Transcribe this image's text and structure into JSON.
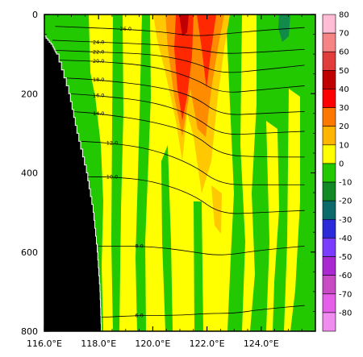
{
  "chart_data": {
    "type": "heatmap",
    "x_axis": {
      "range": [
        116.0,
        126.0
      ],
      "ticks": [
        116.0,
        118.0,
        120.0,
        122.0,
        124.0
      ],
      "tick_labels": [
        "116.0°E",
        "118.0°E",
        "120.0°E",
        "122.0°E",
        "124.0°E"
      ]
    },
    "y_axis": {
      "range": [
        0,
        800
      ],
      "inverted": true,
      "ticks": [
        0,
        200,
        400,
        600,
        800
      ],
      "tick_labels": [
        "0",
        "200",
        "400",
        "600",
        "800"
      ]
    },
    "colorbar": {
      "levels": [
        80,
        70,
        60,
        50,
        40,
        30,
        20,
        10,
        0,
        -10,
        -20,
        -30,
        -40,
        -50,
        -60,
        -70,
        -80
      ],
      "tick_labels": [
        "80",
        "70",
        "60",
        "50",
        "40",
        "30",
        "20",
        "10",
        "0",
        "-10",
        "-20",
        "-30",
        "-40",
        "-50",
        "-60",
        "-70",
        "-80"
      ],
      "colors": [
        "#ffbcd4",
        "#f68484",
        "#e03c3c",
        "#c00000",
        "#ff0000",
        "#ff7800",
        "#ffb400",
        "#ffff00",
        "#22c800",
        "#118a26",
        "#0d6a6a",
        "#2a2ad8",
        "#7a3cff",
        "#a928d1",
        "#c84ac4",
        "#e45ee8",
        "#f08bf0"
      ]
    },
    "color_fill": {
      "positive_0_10": "#ffff00",
      "positive_10_20": "#ffc800",
      "positive_20_30": "#ff8c00",
      "positive_30_40": "#ff2800",
      "negative_0_10": "#22c800",
      "negative_10_20": "#118a4a",
      "land": "#000000"
    },
    "land_boundary_depth_vs_lon": [
      {
        "depth": 55,
        "lon": 116.0
      },
      {
        "depth": 80,
        "lon": 116.3
      },
      {
        "depth": 100,
        "lon": 116.45
      },
      {
        "depth": 200,
        "lon": 116.9
      },
      {
        "depth": 300,
        "lon": 117.2
      },
      {
        "depth": 400,
        "lon": 117.55
      },
      {
        "depth": 500,
        "lon": 117.8
      },
      {
        "depth": 600,
        "lon": 117.95
      },
      {
        "depth": 700,
        "lon": 118.05
      },
      {
        "depth": 800,
        "lon": 118.1
      }
    ],
    "contours": [
      {
        "level": "26.0",
        "points": [
          [
            116.4,
            30
          ],
          [
            119.0,
            37
          ],
          [
            120.5,
            45
          ],
          [
            121.5,
            55
          ],
          [
            122.5,
            50
          ],
          [
            124.0,
            40
          ],
          [
            125.6,
            33
          ]
        ]
      },
      {
        "level": "24.0",
        "points": [
          [
            116.3,
            65
          ],
          [
            118.0,
            70
          ],
          [
            120.0,
            75
          ],
          [
            121.5,
            85
          ],
          [
            122.5,
            100
          ],
          [
            124.0,
            95
          ],
          [
            125.6,
            88
          ]
        ]
      },
      {
        "level": "22.0",
        "points": [
          [
            116.3,
            90
          ],
          [
            118.0,
            95
          ],
          [
            120.0,
            100
          ],
          [
            121.5,
            120
          ],
          [
            122.5,
            150
          ],
          [
            124.0,
            140
          ],
          [
            125.6,
            128
          ]
        ]
      },
      {
        "level": "20.0",
        "points": [
          [
            116.4,
            115
          ],
          [
            118.0,
            118
          ],
          [
            120.0,
            130
          ],
          [
            121.5,
            160
          ],
          [
            122.5,
            200
          ],
          [
            124.0,
            190
          ],
          [
            125.6,
            180
          ]
        ]
      },
      {
        "level": "18.0",
        "points": [
          [
            116.7,
            160
          ],
          [
            118.0,
            165
          ],
          [
            120.0,
            180
          ],
          [
            121.5,
            205
          ],
          [
            122.5,
            255
          ],
          [
            124.0,
            250
          ],
          [
            125.6,
            245
          ]
        ]
      },
      {
        "level": "16.0",
        "points": [
          [
            116.9,
            200
          ],
          [
            118.0,
            205
          ],
          [
            120.0,
            220
          ],
          [
            121.5,
            255
          ],
          [
            122.5,
            305
          ],
          [
            124.0,
            300
          ],
          [
            125.6,
            295
          ]
        ]
      },
      {
        "level": "14.0",
        "points": [
          [
            117.0,
            245
          ],
          [
            118.0,
            250
          ],
          [
            120.0,
            270
          ],
          [
            121.5,
            300
          ],
          [
            122.5,
            355
          ],
          [
            124.0,
            360
          ],
          [
            125.6,
            360
          ]
        ]
      },
      {
        "level": "12.0",
        "points": [
          [
            117.3,
            320
          ],
          [
            118.5,
            325
          ],
          [
            120.0,
            340
          ],
          [
            121.5,
            380
          ],
          [
            122.5,
            430
          ],
          [
            124.0,
            430
          ],
          [
            125.6,
            430
          ]
        ]
      },
      {
        "level": "10.0",
        "points": [
          [
            117.6,
            410
          ],
          [
            118.5,
            410
          ],
          [
            120.0,
            420
          ],
          [
            121.5,
            455
          ],
          [
            122.5,
            505
          ],
          [
            124.0,
            500
          ],
          [
            125.6,
            495
          ]
        ]
      },
      {
        "level": "8.0",
        "points": [
          [
            118.0,
            585
          ],
          [
            119.5,
            585
          ],
          [
            120.5,
            590
          ],
          [
            121.5,
            600
          ],
          [
            122.5,
            610
          ],
          [
            124.0,
            595
          ],
          [
            125.6,
            585
          ]
        ]
      },
      {
        "level": "6.0",
        "points": [
          [
            118.1,
            765
          ],
          [
            119.5,
            760
          ],
          [
            121.0,
            760
          ],
          [
            122.0,
            755
          ],
          [
            123.0,
            755
          ],
          [
            124.0,
            745
          ],
          [
            125.6,
            735
          ]
        ]
      }
    ]
  }
}
